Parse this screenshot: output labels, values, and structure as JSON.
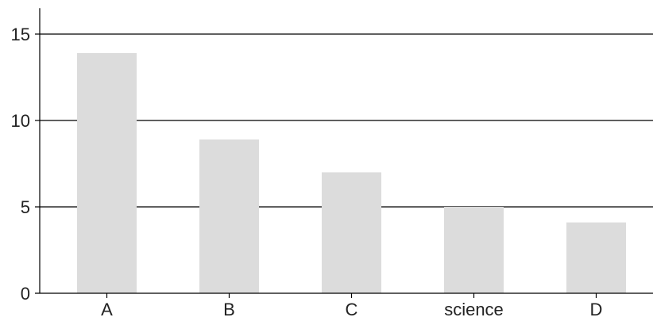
{
  "chart_data": {
    "type": "bar",
    "categories": [
      "A",
      "B",
      "C",
      "science",
      "D"
    ],
    "values": [
      13.9,
      8.9,
      7.0,
      5.0,
      4.1
    ],
    "title": "",
    "xlabel": "",
    "ylabel": "",
    "ylim": [
      0,
      16.5
    ],
    "yticks": [
      0,
      5,
      10,
      15
    ],
    "grid": "horizontal",
    "legend": "none",
    "colors": {
      "bar": "#dcdcdc",
      "grid": "#000000",
      "axis": "#000000",
      "text": "#222222"
    }
  }
}
